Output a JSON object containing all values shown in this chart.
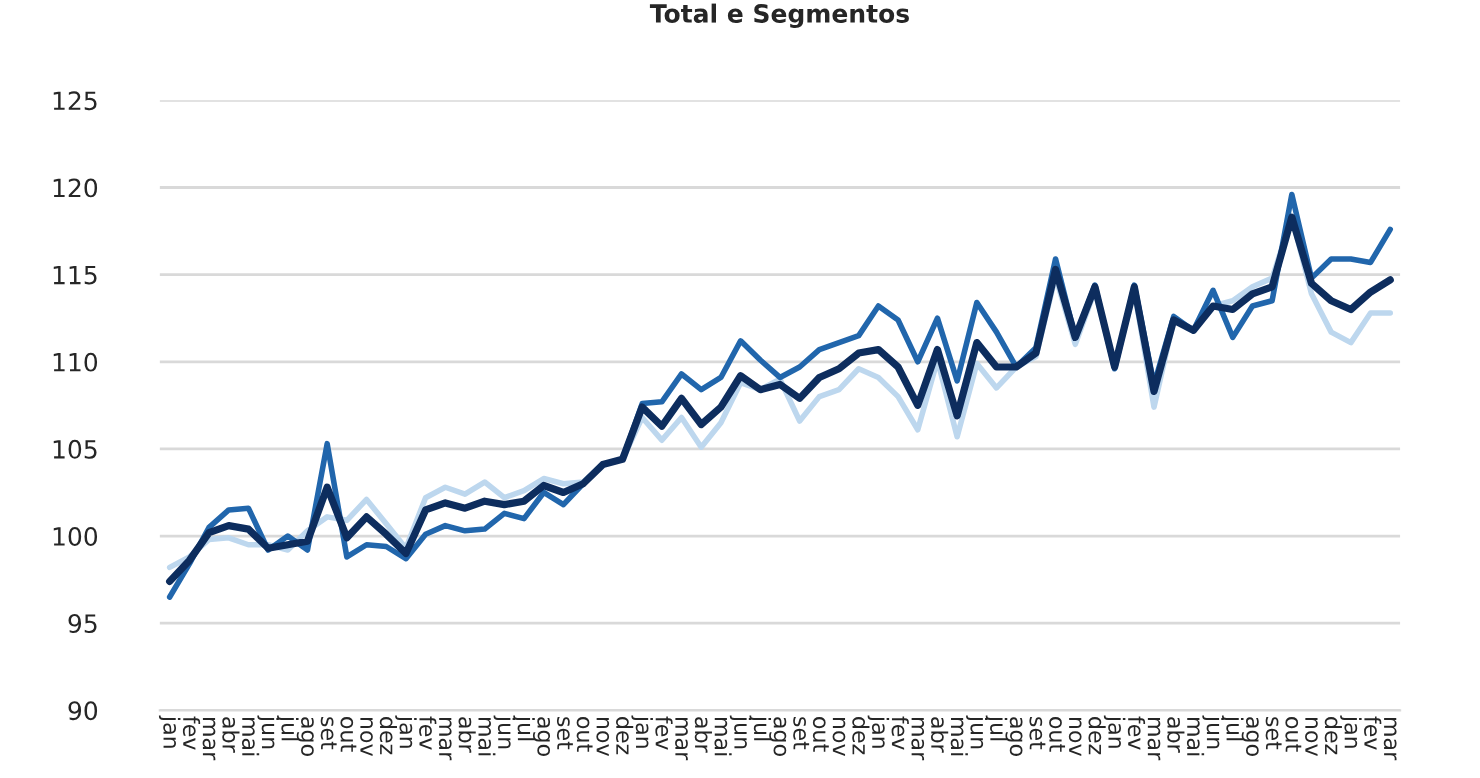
{
  "chart_data": {
    "type": "line",
    "title": "Total e Segmentos",
    "categories": [
      "jan",
      "fev",
      "mar",
      "abr",
      "mai",
      "jun",
      "jul",
      "ago",
      "set",
      "out",
      "nov",
      "dez",
      "jan",
      "fev",
      "mar",
      "abr",
      "mai",
      "jun",
      "jul",
      "ago",
      "set",
      "out",
      "nov",
      "dez",
      "jan",
      "fev",
      "mar",
      "abr",
      "mai",
      "jun",
      "jul",
      "ago",
      "set",
      "out",
      "nov",
      "dez",
      "jan",
      "fev",
      "mar",
      "abr",
      "mai",
      "jun",
      "jul",
      "ago",
      "set",
      "out",
      "nov",
      "dez",
      "jan",
      "fev",
      "mar",
      "abr",
      "mai",
      "jun",
      "jul",
      "ago",
      "set",
      "out",
      "nov",
      "dez",
      "jan",
      "fev",
      "mar"
    ],
    "series": [
      {
        "color": "#bdd7ee",
        "values": [
          98.2,
          98.8,
          99.8,
          99.9,
          99.5,
          99.5,
          99.2,
          100.3,
          101.1,
          100.9,
          102.1,
          100.7,
          99.3,
          102.2,
          102.8,
          102.4,
          103.1,
          102.2,
          102.6,
          103.3,
          103.0,
          103.1,
          104.1,
          104.4,
          106.8,
          105.5,
          106.8,
          105.1,
          106.5,
          108.8,
          108.4,
          109.0,
          106.6,
          108.0,
          108.4,
          109.6,
          109.1,
          108.0,
          106.1,
          110.1,
          105.7,
          109.9,
          108.5,
          109.7,
          110.3,
          114.9,
          111.0,
          114.1,
          109.7,
          114.1,
          107.4,
          112.4,
          111.8,
          113.2,
          113.5,
          114.3,
          114.8,
          118.3,
          113.9,
          111.7,
          111.1,
          112.8,
          112.8
        ]
      },
      {
        "color": "#2166ac",
        "values": [
          96.5,
          98.4,
          100.5,
          101.5,
          101.6,
          99.2,
          100.0,
          99.2,
          105.3,
          98.8,
          99.5,
          99.4,
          98.7,
          100.1,
          100.6,
          100.3,
          100.4,
          101.3,
          101.0,
          102.5,
          101.8,
          103.0,
          104.1,
          104.4,
          107.6,
          107.7,
          109.3,
          108.4,
          109.1,
          111.2,
          110.1,
          109.1,
          109.7,
          110.7,
          111.1,
          111.5,
          113.2,
          112.4,
          110.0,
          112.5,
          108.9,
          113.4,
          111.7,
          109.7,
          110.8,
          115.9,
          111.4,
          114.4,
          109.6,
          114.4,
          108.7,
          112.6,
          111.8,
          114.1,
          111.4,
          113.2,
          113.5,
          119.6,
          114.8,
          115.9,
          115.9,
          115.7,
          117.6
        ]
      },
      {
        "color": "#0d2d5e",
        "values": [
          97.4,
          98.6,
          100.2,
          100.6,
          100.4,
          99.3,
          99.5,
          99.7,
          102.8,
          99.9,
          101.1,
          100.1,
          99.0,
          101.5,
          101.9,
          101.6,
          102.0,
          101.8,
          102.0,
          102.9,
          102.5,
          103.0,
          104.1,
          104.4,
          107.4,
          106.3,
          107.9,
          106.4,
          107.4,
          109.2,
          108.4,
          108.7,
          107.9,
          109.1,
          109.6,
          110.5,
          110.7,
          109.7,
          107.5,
          110.7,
          106.9,
          111.1,
          109.7,
          109.7,
          110.5,
          115.3,
          111.4,
          114.3,
          109.7,
          114.3,
          108.3,
          112.4,
          111.8,
          113.2,
          113.0,
          113.9,
          114.3,
          118.3,
          114.5,
          113.5,
          113.0,
          114.0,
          114.7
        ]
      }
    ],
    "ylim": [
      90,
      125
    ],
    "yticks": [
      90,
      95,
      100,
      105,
      110,
      115,
      120,
      125
    ],
    "grid": "y",
    "legend": false
  }
}
